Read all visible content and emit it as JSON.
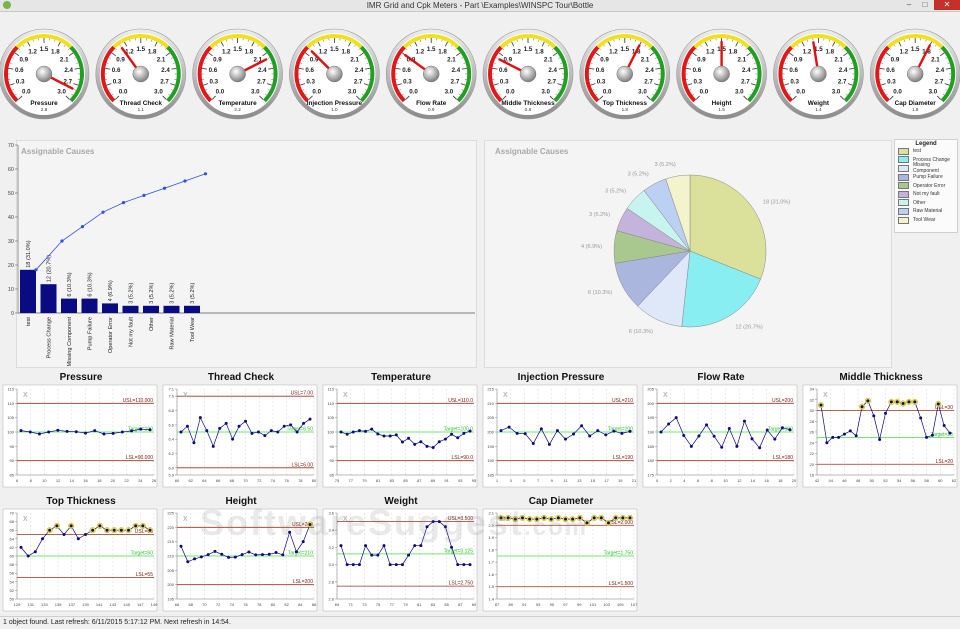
{
  "window": {
    "title": "IMR Grid and Cpk Meters - Part \\Examples\\WINSPC Tour\\Bottle",
    "minimize": "–",
    "maximize": "□",
    "close": "✕",
    "app_icon": "app-icon"
  },
  "gauges": {
    "ticks": [
      "0.0",
      "0.3",
      "0.6",
      "0.9",
      "1.2",
      "1.5",
      "1.8",
      "2.1",
      "2.4",
      "2.7",
      "3.0"
    ],
    "items": [
      {
        "label": "Pressure",
        "value": 2.8,
        "value_text": "2.8"
      },
      {
        "label": "Thread Check",
        "value": 1.1,
        "value_text": "1.1"
      },
      {
        "label": "Temperature",
        "value": 2.2,
        "value_text": "2.2"
      },
      {
        "label": "Injection Pressure",
        "value": 1.0,
        "value_text": "1.0"
      },
      {
        "label": "Flow Rate",
        "value": 0.9,
        "value_text": "0.9"
      },
      {
        "label": "Middle Thickness",
        "value": 0.8,
        "value_text": "0.8"
      },
      {
        "label": "Top Thickness",
        "value": 1.8,
        "value_text": "1.8"
      },
      {
        "label": "Height",
        "value": 1.5,
        "value_text": "1.5"
      },
      {
        "label": "Weight",
        "value": 1.4,
        "value_text": "1.4"
      },
      {
        "label": "Cap Diameter",
        "value": 1.8,
        "value_text": "1.8"
      }
    ],
    "colors": {
      "red": "#e01818",
      "yellow": "#f0e020",
      "green": "#20a020",
      "needle": "#e01010"
    }
  },
  "pareto": {
    "title": "Assignable Causes",
    "yticks": [
      "0",
      "10",
      "20",
      "30",
      "40",
      "50",
      "60",
      "70"
    ],
    "ymax": 70,
    "categories": [
      "test",
      "Process Change",
      "Missing Component",
      "Pump Failure",
      "Operator Error",
      "Not my fault",
      "Other",
      "Raw Material",
      "Tool Wear"
    ],
    "values": [
      18,
      12,
      6,
      6,
      4,
      3,
      3,
      3,
      3
    ],
    "bar_labels": [
      "18 (31.0%)",
      "12 (20.7%)",
      "6 (10.3%)",
      "6 (10.3%)",
      "4 (6.9%)",
      "3 (5.2%)",
      "3 (5.2%)",
      "3 (5.2%)",
      "3 (5.2%)"
    ],
    "cumulative": [
      18,
      30,
      36,
      42,
      46,
      49,
      52,
      55,
      58
    ],
    "bar_color": "#0a0a82",
    "line_color": "#3050e8"
  },
  "pie": {
    "title": "Assignable Causes",
    "slices": [
      {
        "name": "test",
        "value": 18,
        "label": "18 (31.0%)",
        "color": "#dbe09a"
      },
      {
        "name": "Process Change",
        "value": 12,
        "label": "12 (20.7%)",
        "color": "#88eef2"
      },
      {
        "name": "Missing Component",
        "value": 6,
        "label": "6 (10.3%)",
        "color": "#dfe8f8"
      },
      {
        "name": "Pump Failure",
        "value": 6,
        "label": "6 (10.3%)",
        "color": "#aab6de"
      },
      {
        "name": "Operator Error",
        "value": 4,
        "label": "4 (6.9%)",
        "color": "#a8c890"
      },
      {
        "name": "Not my fault",
        "value": 3,
        "label": "3 (5.2%)",
        "color": "#c4b4dc"
      },
      {
        "name": "Other",
        "value": 3,
        "label": "3 (5.2%)",
        "color": "#c8f4f0"
      },
      {
        "name": "Raw Material",
        "value": 3,
        "label": "3 (5.2%)",
        "color": "#bcd0f4"
      },
      {
        "name": "Tool Wear",
        "value": 3,
        "label": "3 (5.2%)",
        "color": "#f4f4cc"
      }
    ]
  },
  "legend": {
    "title": "Legend"
  },
  "imr_charts": [
    {
      "title": "Pressure",
      "usl_label": "USL=110.000",
      "lsl_label": "LSL=90.000",
      "target_label": "Target=100",
      "usl": 110,
      "lsl": 90,
      "target": 100,
      "ymin": 85,
      "ymax": 115,
      "yticks": [
        "85",
        "90",
        "95",
        "100",
        "105",
        "110",
        "115"
      ],
      "xticks": [
        "6",
        "8",
        "10",
        "12",
        "14",
        "16",
        "18",
        "20",
        "22",
        "24",
        "26"
      ],
      "values": [
        100.5,
        100,
        99.3,
        100,
        100.6,
        100.2,
        100.1,
        99.6,
        100.5,
        99.3,
        99.5,
        100,
        100.4,
        101,
        100.8
      ]
    },
    {
      "title": "Thread Check",
      "usl_label": "USL=7.00",
      "lsl_label": "LSL=6.00",
      "target_label": "Target=6.50",
      "usl": 7.0,
      "lsl": 6.0,
      "target": 6.5,
      "ymin": 5.9,
      "ymax": 7.1,
      "yticks": [
        "5.9",
        "6.0",
        "6.2",
        "6.4",
        "6.6",
        "6.8",
        "7.0",
        "7.1"
      ],
      "xticks": [
        "60",
        "62",
        "64",
        "66",
        "68",
        "70",
        "72",
        "74",
        "76",
        "78",
        "80"
      ],
      "values": [
        6.5,
        6.58,
        6.35,
        6.7,
        6.52,
        6.3,
        6.55,
        6.62,
        6.4,
        6.58,
        6.65,
        6.48,
        6.5,
        6.45,
        6.52,
        6.5,
        6.58,
        6.6,
        6.5,
        6.62,
        6.68
      ]
    },
    {
      "title": "Temperature",
      "usl_label": "USL=110.0",
      "lsl_label": "LSL=90.0",
      "target_label": "Target=100.0",
      "usl": 110,
      "lsl": 90,
      "target": 100,
      "ymin": 85,
      "ymax": 115,
      "yticks": [
        "85",
        "90",
        "95",
        "100",
        "105",
        "110",
        "115"
      ],
      "xticks": [
        "75",
        "77",
        "79",
        "81",
        "83",
        "85",
        "87",
        "89",
        "91",
        "93",
        "95"
      ],
      "values": [
        100,
        99.2,
        100,
        100.5,
        100.2,
        101,
        99.3,
        98.6,
        98.6,
        99,
        96.5,
        97.8,
        95.7,
        96.6,
        95,
        94.6,
        96.6,
        97.5,
        99.2,
        98,
        99.5,
        100.3
      ]
    },
    {
      "title": "Injection Pressure",
      "usl_label": "USL=210",
      "lsl_label": "LSL=190",
      "target_label": "Target=200",
      "usl": 210,
      "lsl": 190,
      "target": 200,
      "ymin": 185,
      "ymax": 215,
      "yticks": [
        "185",
        "190",
        "195",
        "200",
        "205",
        "210",
        "215"
      ],
      "xticks": [
        "1",
        "3",
        "5",
        "7",
        "9",
        "11",
        "13",
        "15",
        "17",
        "19",
        "21"
      ],
      "values": [
        200.5,
        201.7,
        199.5,
        199.4,
        196,
        201.1,
        195.7,
        200.5,
        197.5,
        199.3,
        202.2,
        198.6,
        200.5,
        199,
        200.3,
        199.5,
        200.2
      ]
    },
    {
      "title": "Flow Rate",
      "usl_label": "USL=200",
      "lsl_label": "LSL=180",
      "target_label": "Target=190",
      "usl": 200,
      "lsl": 180,
      "target": 190,
      "ymin": 175,
      "ymax": 205,
      "yticks": [
        "175",
        "180",
        "185",
        "190",
        "195",
        "200",
        "205"
      ],
      "xticks": [
        "0",
        "2",
        "4",
        "6",
        "8",
        "10",
        "12",
        "14",
        "16",
        "18",
        "20"
      ],
      "values": [
        190,
        192.8,
        195,
        188.8,
        185,
        188.6,
        192.5,
        188.5,
        184.7,
        191.2,
        185,
        193.8,
        187.6,
        184.5,
        190.7,
        187.5,
        191.5,
        190.8
      ]
    },
    {
      "title": "Middle Thickness",
      "usl_label": "USL=30",
      "lsl_label": "LSL=20",
      "target_label": "Target=25",
      "usl": 30,
      "lsl": 20,
      "target": 25,
      "ymin": 18,
      "ymax": 34,
      "yticks": [
        "18",
        "20",
        "22",
        "24",
        "26",
        "28",
        "30",
        "32",
        "34"
      ],
      "xticks": [
        "42",
        "44",
        "46",
        "48",
        "50",
        "52",
        "54",
        "56",
        "58",
        "60",
        "62"
      ],
      "values": [
        31,
        24,
        25,
        25,
        25.6,
        26.2,
        25.3,
        30.7,
        31.8,
        29,
        24.6,
        29.5,
        31.6,
        31.6,
        31.3,
        31.6,
        31.6,
        28.6,
        25,
        25.4,
        31.2,
        27.2,
        25.8
      ]
    },
    {
      "title": "Top Thickness",
      "usl_label": "USL=65",
      "lsl_label": "LSL=55",
      "target_label": "Target=60",
      "usl": 65,
      "lsl": 55,
      "target": 60,
      "ymin": 50,
      "ymax": 70,
      "yticks": [
        "50",
        "52",
        "54",
        "56",
        "58",
        "60",
        "62",
        "64",
        "66",
        "68",
        "70"
      ],
      "xticks": [
        "129",
        "131",
        "133",
        "135",
        "137",
        "139",
        "141",
        "143",
        "145",
        "147",
        "149"
      ],
      "values": [
        62,
        60,
        61,
        64,
        66,
        67,
        65,
        67,
        64,
        65,
        66,
        67,
        66,
        66,
        66,
        66,
        67,
        67,
        66
      ]
    },
    {
      "title": "Height",
      "usl_label": "USL=220",
      "lsl_label": "LSL=200",
      "target_label": "Target=210",
      "usl": 220,
      "lsl": 200,
      "target": 210,
      "ymin": 195,
      "ymax": 225,
      "yticks": [
        "195",
        "200",
        "205",
        "210",
        "215",
        "220",
        "225"
      ],
      "xticks": [
        "66",
        "68",
        "70",
        "72",
        "74",
        "76",
        "78",
        "80",
        "82",
        "84",
        "86"
      ],
      "values": [
        213.4,
        208,
        209,
        209.7,
        210.5,
        211.6,
        210.6,
        209.5,
        209.6,
        210.5,
        211.4,
        210.4,
        210.5,
        210.6,
        211.2,
        210.4,
        218.3,
        211.5,
        215,
        221
      ]
    },
    {
      "title": "Weight",
      "usl_label": "USL=3.500",
      "lsl_label": "LSL=2.750",
      "target_label": "Target=3.125",
      "usl": 3.5,
      "lsl": 2.75,
      "target": 3.125,
      "ymin": 2.6,
      "ymax": 3.6,
      "yticks": [
        "2.6",
        "2.8",
        "3.0",
        "3.2",
        "3.4",
        "3.6"
      ],
      "xticks": [
        "69",
        "71",
        "73",
        "75",
        "77",
        "79",
        "81",
        "83",
        "85",
        "87",
        "89"
      ],
      "values": [
        3.22,
        3.0,
        3.0,
        3.0,
        3.22,
        3.11,
        3.11,
        3.22,
        3.0,
        3.0,
        3.0,
        3.11,
        3.22,
        3.22,
        3.44,
        3.5,
        3.5,
        3.44,
        3.2,
        3.0,
        3.0,
        3.0
      ]
    },
    {
      "title": "Cap Diameter",
      "usl_label": "USL=2.000",
      "lsl_label": "LSL=1.500",
      "target_label": "Target=1.750",
      "usl": 2.0,
      "lsl": 1.5,
      "target": 1.75,
      "ymin": 1.4,
      "ymax": 2.1,
      "yticks": [
        "1.4",
        "1.5",
        "1.6",
        "1.7",
        "1.8",
        "1.9",
        "2.0",
        "2.1"
      ],
      "xticks": [
        "87",
        "89",
        "91",
        "93",
        "95",
        "97",
        "99",
        "101",
        "103",
        "105",
        "107"
      ],
      "values": [
        2.06,
        2.06,
        2.05,
        2.06,
        2.05,
        2.05,
        2.06,
        2.05,
        2.06,
        2.05,
        2.05,
        2.06,
        2.02,
        2.06,
        2.06,
        2.02,
        2.06,
        2.06,
        2.06
      ]
    }
  ],
  "imr_common": {
    "x_marker": "X"
  },
  "watermark": {
    "text": "SoftwareSuggest",
    "suffix": ".com"
  },
  "status": {
    "text": "1 object found.  Last refresh: 6/11/2015 5:17:12 PM.  Next refresh in 14:54."
  }
}
